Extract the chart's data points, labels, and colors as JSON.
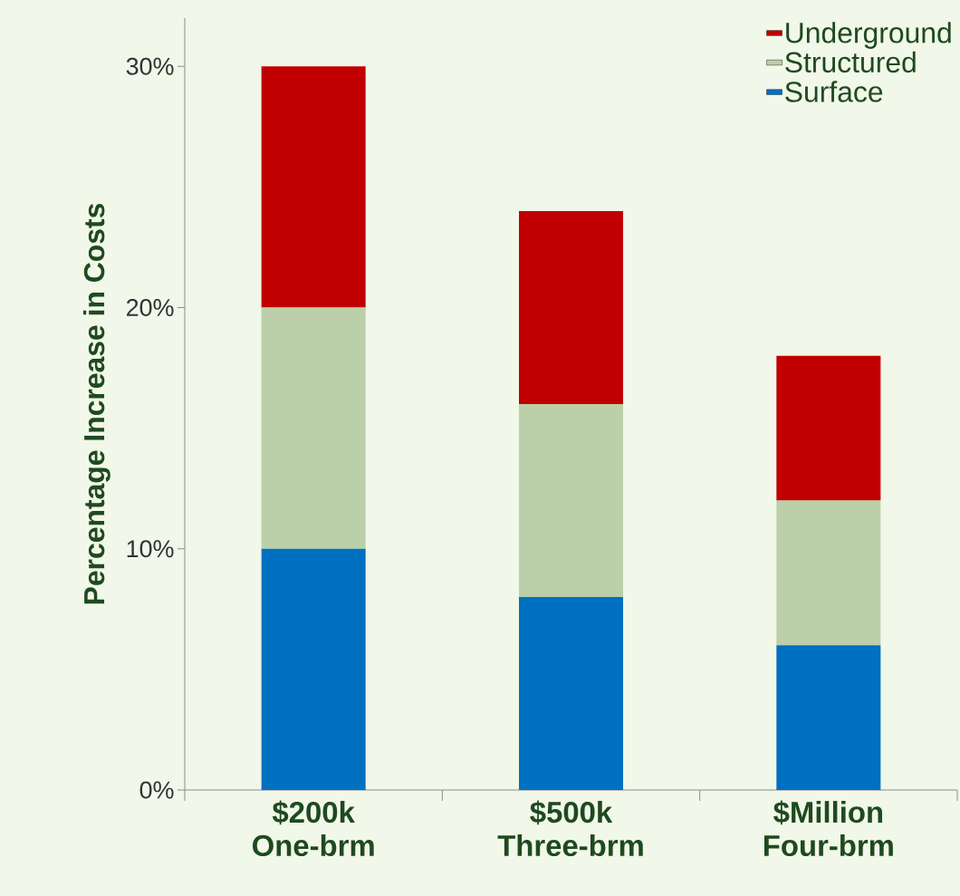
{
  "chart_data": {
    "type": "bar",
    "stacked": true,
    "ylabel": "Percentage Increase in Costs",
    "categories": [
      "$200k One-brm",
      "$500k Three-brm",
      "$Million Four-brm"
    ],
    "series": [
      {
        "name": "Surface",
        "color": "#0070c0",
        "values": [
          10,
          8,
          6
        ]
      },
      {
        "name": "Structured",
        "color": "#bbcfa8",
        "values": [
          10,
          8,
          6
        ]
      },
      {
        "name": "Underground",
        "color": "#c00000",
        "values": [
          10,
          8,
          6
        ]
      }
    ],
    "ylim": [
      0,
      32
    ],
    "yticks": [
      {
        "value": 0,
        "label": "0%"
      },
      {
        "value": 10,
        "label": "10%"
      },
      {
        "value": 20,
        "label": "20%"
      },
      {
        "value": 30,
        "label": "30%"
      }
    ],
    "legend": "top right",
    "grid": false
  }
}
